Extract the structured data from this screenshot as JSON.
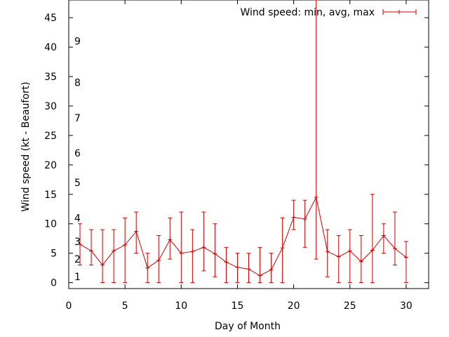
{
  "chart_data": {
    "type": "line",
    "title": "",
    "xlabel": "Day of Month",
    "ylabel": "Wind speed (kt - Beaufort)",
    "xlim": [
      0,
      32
    ],
    "ylim": [
      -1,
      48
    ],
    "xticks": [
      0,
      5,
      10,
      15,
      20,
      25,
      30
    ],
    "yticks": [
      0,
      5,
      10,
      15,
      20,
      25,
      30,
      35,
      40,
      45
    ],
    "beaufort_markers": [
      {
        "label": "1",
        "y": 1
      },
      {
        "label": "2",
        "y": 4
      },
      {
        "label": "3",
        "y": 7
      },
      {
        "label": "4",
        "y": 11
      },
      {
        "label": "5",
        "y": 17
      },
      {
        "label": "6",
        "y": 22
      },
      {
        "label": "7",
        "y": 28
      },
      {
        "label": "8",
        "y": 34
      },
      {
        "label": "9",
        "y": 41
      }
    ],
    "grid": false,
    "legend_position": "top-right",
    "series": [
      {
        "name": "Wind speed: min, avg, max",
        "color": "#cc0000",
        "x": [
          1,
          2,
          3,
          4,
          5,
          6,
          7,
          8,
          9,
          10,
          11,
          12,
          13,
          14,
          15,
          16,
          17,
          18,
          19,
          20,
          21,
          22,
          23,
          24,
          25,
          26,
          27,
          28,
          29,
          30
        ],
        "avg": [
          6.5,
          5.4,
          3.0,
          5.4,
          6.4,
          8.7,
          2.5,
          3.8,
          7.3,
          5.0,
          5.3,
          6.0,
          4.9,
          3.5,
          2.6,
          2.3,
          1.2,
          2.2,
          5.9,
          11.1,
          10.8,
          14.5,
          5.3,
          4.4,
          5.4,
          3.6,
          5.5,
          8.0,
          5.8,
          4.3
        ],
        "min": [
          3,
          3,
          0,
          0,
          0,
          5,
          0,
          0,
          4,
          0,
          0,
          2,
          1,
          0,
          0,
          0,
          0,
          0,
          0,
          9,
          6,
          4,
          1,
          0,
          0,
          0,
          0,
          5,
          3,
          0
        ],
        "max": [
          10,
          9,
          9,
          9,
          11,
          12,
          5,
          8,
          11,
          12,
          9,
          12,
          10,
          6,
          5,
          5,
          6,
          5,
          11,
          14,
          14,
          48,
          9,
          8,
          9,
          8,
          15,
          10,
          12,
          7
        ]
      }
    ]
  }
}
